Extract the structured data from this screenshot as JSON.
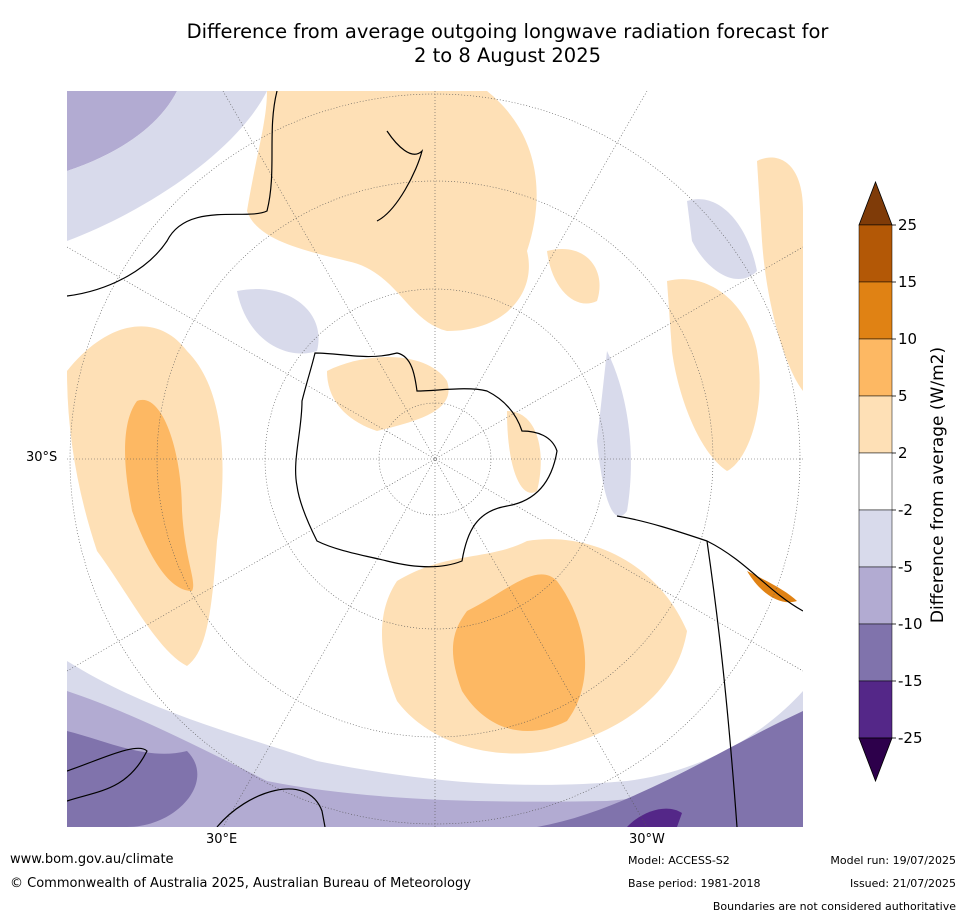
{
  "title_line1": "Difference from average outgoing longwave radiation forecast for",
  "title_line2": "2 to 8 August 2025",
  "map": {
    "lat_label": "30°S",
    "lon_label_left": "30°E",
    "lon_label_right": "30°W"
  },
  "colorbar": {
    "label": "Difference from average (W/m2)",
    "ticks": [
      "25",
      "15",
      "10",
      "5",
      "2",
      "-2",
      "-5",
      "-10",
      "-15",
      "-25"
    ],
    "bins": [
      {
        "range": ">25",
        "color": "#7f3b08"
      },
      {
        "range": "15 to 25",
        "color": "#b35806"
      },
      {
        "range": "10 to 15",
        "color": "#e08214"
      },
      {
        "range": "5 to 10",
        "color": "#fdb863"
      },
      {
        "range": "2 to 5",
        "color": "#fee0b6"
      },
      {
        "range": "-2 to 2",
        "color": "#ffffff"
      },
      {
        "range": "-5 to -2",
        "color": "#d8daeb"
      },
      {
        "range": "-10 to -5",
        "color": "#b2abd2"
      },
      {
        "range": "-15 to -10",
        "color": "#8073ac"
      },
      {
        "range": "-25 to -15",
        "color": "#542788"
      },
      {
        "range": "<-25",
        "color": "#2d004b"
      }
    ]
  },
  "footer": {
    "website": "www.bom.gov.au/climate",
    "copyright": "© Commonwealth of Australia 2025, Australian Bureau of Meteorology",
    "model": "Model: ACCESS-S2",
    "base_period": "Base period: 1981-2018",
    "model_run": "Model run: 19/07/2025",
    "issued": "Issued: 21/07/2025",
    "disclaimer": "Boundaries are not considered authoritative"
  }
}
